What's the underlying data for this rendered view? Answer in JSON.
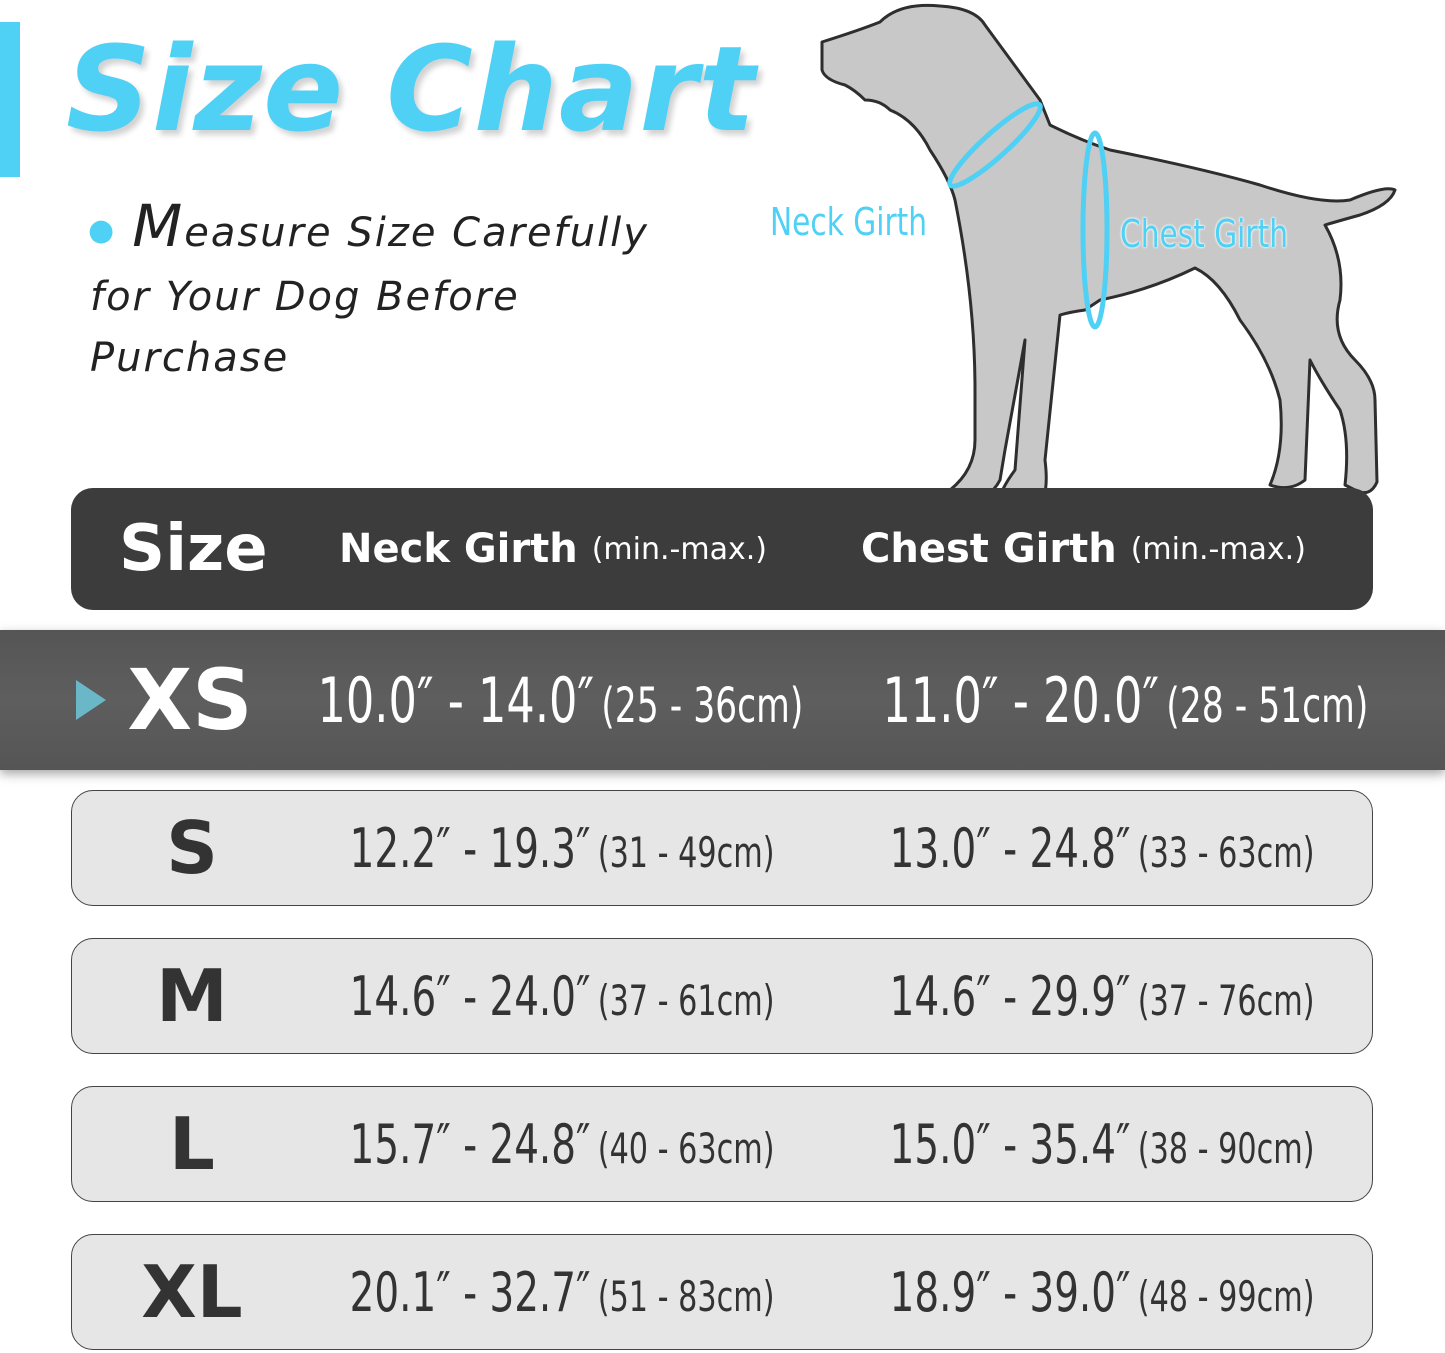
{
  "title": "Size Chart",
  "subtitle": {
    "first_letter": "M",
    "rest": "easure Size Carefully for Your Dog Before Purchase"
  },
  "diagram": {
    "neck_label": "Neck Girth",
    "chest_label": "Chest Girth"
  },
  "colors": {
    "accent": "#4fd0f5",
    "header_bg": "#3c3c3c",
    "highlight_bg": "#5a5a5a",
    "row_bg": "#e6e6e6"
  },
  "table": {
    "headers": {
      "size": "Size",
      "neck": "Neck Girth",
      "neck_unit": "(min.-max.)",
      "chest": "Chest Girth",
      "chest_unit": "(min.-max.)"
    },
    "highlighted_size": "XS",
    "rows": [
      {
        "size": "XS",
        "neck_in": "10.0″ - 14.0″",
        "neck_cm": "(25 - 36cm)",
        "chest_in": "11.0″ - 20.0″",
        "chest_cm": "(28 - 51cm)"
      },
      {
        "size": "S",
        "neck_in": "12.2″ - 19.3″",
        "neck_cm": "(31 - 49cm)",
        "chest_in": "13.0″ - 24.8″",
        "chest_cm": "(33 - 63cm)"
      },
      {
        "size": "M",
        "neck_in": "14.6″ - 24.0″",
        "neck_cm": "(37 - 61cm)",
        "chest_in": "14.6″ - 29.9″",
        "chest_cm": "(37 - 76cm)"
      },
      {
        "size": "L",
        "neck_in": "15.7″ - 24.8″",
        "neck_cm": "(40 - 63cm)",
        "chest_in": "15.0″ - 35.4″",
        "chest_cm": "(38 - 90cm)"
      },
      {
        "size": "XL",
        "neck_in": "20.1″ - 32.7″",
        "neck_cm": "(51 - 83cm)",
        "chest_in": "18.9″ - 39.0″",
        "chest_cm": "(48 - 99cm)"
      }
    ]
  }
}
